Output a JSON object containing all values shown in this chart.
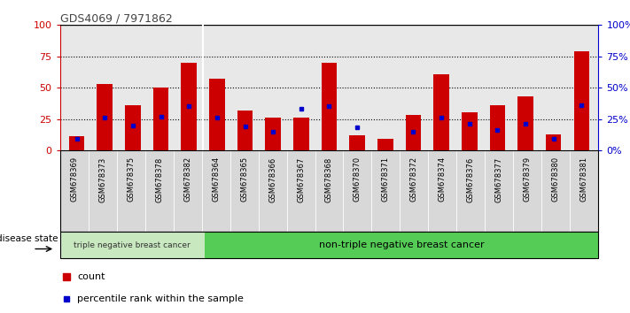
{
  "title": "GDS4069 / 7971862",
  "samples": [
    "GSM678369",
    "GSM678373",
    "GSM678375",
    "GSM678378",
    "GSM678382",
    "GSM678364",
    "GSM678365",
    "GSM678366",
    "GSM678367",
    "GSM678368",
    "GSM678370",
    "GSM678371",
    "GSM678372",
    "GSM678374",
    "GSM678376",
    "GSM678377",
    "GSM678379",
    "GSM678380",
    "GSM678381"
  ],
  "red_values": [
    11,
    53,
    36,
    50,
    70,
    57,
    32,
    26,
    26,
    70,
    12,
    9,
    28,
    61,
    30,
    36,
    43,
    13,
    79
  ],
  "blue_values": [
    9,
    26,
    20,
    27,
    35,
    26,
    19,
    15,
    33,
    35,
    18,
    0,
    15,
    26,
    21,
    16,
    21,
    9,
    36
  ],
  "group1_label": "triple negative breast cancer",
  "group2_label": "non-triple negative breast cancer",
  "group1_count": 5,
  "group2_count": 14,
  "legend_count": "count",
  "legend_percentile": "percentile rank within the sample",
  "disease_state_label": "disease state",
  "ylim": [
    0,
    100
  ],
  "y_ticks": [
    0,
    25,
    50,
    75,
    100
  ],
  "bar_color": "#CC0000",
  "blue_color": "#0000CC",
  "group1_bg": "#c8e8c0",
  "group2_bg": "#55cc55",
  "tick_bg": "#d8d8d8",
  "plot_bg": "#e8e8e8",
  "red_axis_color": "#CC0000",
  "blue_axis_color": "#0000CC",
  "title_color": "#444444",
  "bar_width": 0.55
}
